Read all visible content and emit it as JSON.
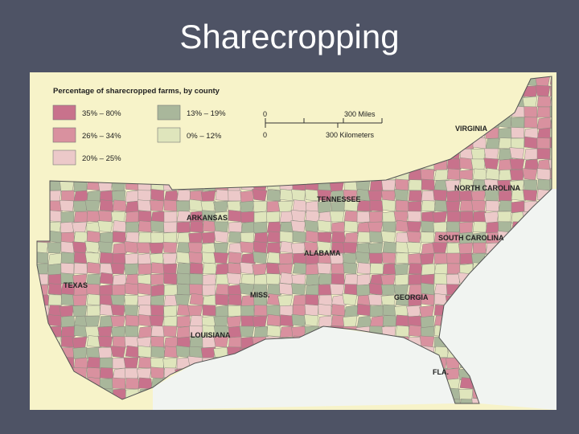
{
  "title": "Sharecropping",
  "map": {
    "legend_title": "Percentage of sharecropped farms, by county",
    "legend": [
      {
        "label": "35% – 80%",
        "color": "#c8728c"
      },
      {
        "label": "13% – 19%",
        "color": "#a9b79b"
      },
      {
        "label": "26% – 34%",
        "color": "#d9919f"
      },
      {
        "label": "0% – 12%",
        "color": "#dfe5bc"
      },
      {
        "label": "20% – 25%",
        "color": "#ecc9c9"
      }
    ],
    "scale": {
      "miles_zero": "0",
      "miles": "300 Miles",
      "km_zero": "0",
      "km": "300 Kilometers"
    },
    "states": [
      "VIRGINIA",
      "NORTH CAROLINA",
      "TENNESSEE",
      "ARKANSAS",
      "SOUTH CAROLINA",
      "ALABAMA",
      "TEXAS",
      "MISS.",
      "GEORGIA",
      "LOUISIANA",
      "FLA."
    ]
  }
}
